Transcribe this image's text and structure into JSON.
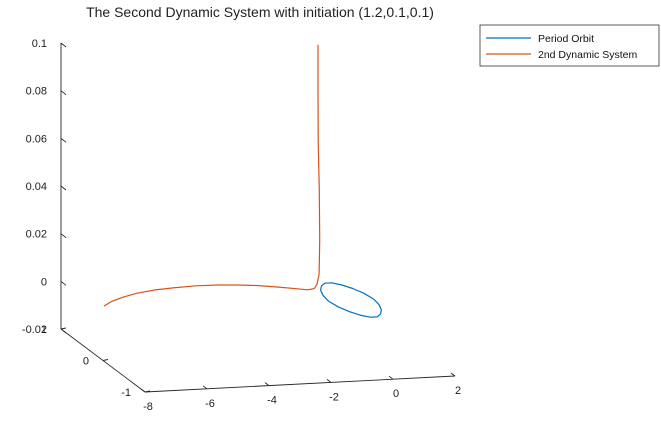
{
  "chart_data": {
    "type": "line",
    "title": "The Second Dynamic System with initiation (1.2,0.1,0.1)",
    "xlabel": "",
    "ylabel": "",
    "zlabel": "",
    "x_ticks": [
      "-8",
      "-6",
      "-4",
      "-2",
      "0",
      "2"
    ],
    "y_ticks": [
      "-1",
      "0",
      "1"
    ],
    "z_ticks": [
      "-0.02",
      "0",
      "0.02",
      "0.04",
      "0.06",
      "0.08",
      "0.1"
    ],
    "xlim": [
      -8,
      2
    ],
    "ylim": [
      -1,
      1
    ],
    "zlim": [
      -0.02,
      0.1
    ],
    "grid": false,
    "legend_position": "top-right",
    "series": [
      {
        "name": "Period Orbit",
        "color": "#0072BD",
        "shape": "closed loop",
        "x": [
          0.72,
          0.66,
          0.52,
          0.33,
          0.11,
          -0.11,
          -0.33,
          -0.52,
          -0.66,
          -0.72,
          -0.72,
          -0.66,
          -0.52,
          -0.33,
          -0.11,
          0.11,
          0.33,
          0.52,
          0.66,
          0.72,
          0.72
        ],
        "y": [
          -0.01,
          -0.18,
          -0.34,
          -0.46,
          -0.54,
          -0.54,
          -0.46,
          -0.34,
          -0.18,
          -0.01,
          0.01,
          0.18,
          0.34,
          0.46,
          0.54,
          0.54,
          0.46,
          0.34,
          0.18,
          0.01,
          -0.01
        ],
        "z": [
          0,
          0,
          0,
          0,
          0,
          0,
          0,
          0,
          0,
          0,
          0,
          0,
          0,
          0,
          0,
          0,
          0,
          0,
          0,
          0,
          0
        ]
      },
      {
        "name": "2nd Dynamic System",
        "color": "#D95319",
        "x": [
          -7.7,
          -7.3,
          -6.8,
          -6.2,
          -5.5,
          -4.8,
          -4.1,
          -3.4,
          -2.8,
          -2.2,
          -1.7,
          -1.2,
          -0.9,
          -0.7,
          -0.6,
          -0.5,
          -0.45,
          -0.4,
          -0.38,
          -0.36,
          -0.35,
          -0.34,
          -0.33,
          -0.32,
          -0.32,
          -0.32
        ],
        "y": [
          0.2,
          0.32,
          0.43,
          0.53,
          0.6,
          0.64,
          0.66,
          0.65,
          0.62,
          0.57,
          0.5,
          0.42,
          0.37,
          0.36,
          0.37,
          0.39,
          0.42,
          0.45,
          0.47,
          0.49,
          0.51,
          0.53,
          0.54,
          0.55,
          0.55,
          0.55
        ],
        "z": [
          0,
          0,
          0,
          0,
          0,
          0,
          0,
          0,
          0,
          0,
          0,
          0,
          0,
          0.0005,
          0.002,
          0.006,
          0.012,
          0.02,
          0.03,
          0.04,
          0.05,
          0.06,
          0.07,
          0.08,
          0.09,
          0.1
        ]
      }
    ]
  }
}
